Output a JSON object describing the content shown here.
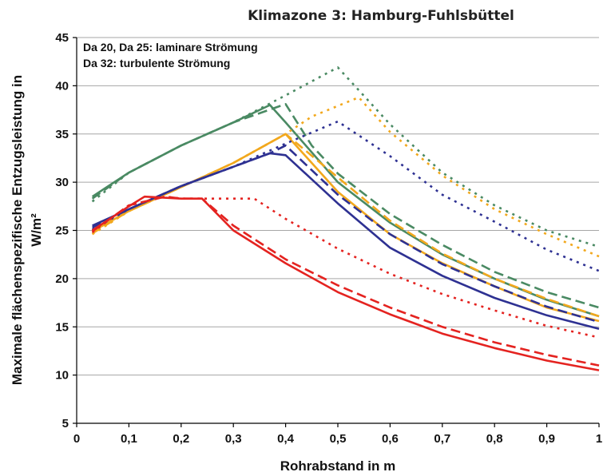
{
  "chart_data": {
    "type": "line",
    "title": "Klimazone 3: Hamburg-Fuhlsbüttel",
    "xlabel": "Rohrabstand in m",
    "ylabel_lines": [
      "Maximale flächenspezifische Entzugsleistung in",
      "W/m²"
    ],
    "annotations": [
      "Da 20, Da 25: laminare Strömung",
      "Da 32: turbulente Strömung"
    ],
    "xlim": [
      0,
      1
    ],
    "ylim": [
      5,
      45
    ],
    "x_ticks": [
      0,
      0.1,
      0.2,
      0.3,
      0.4,
      0.5,
      0.6,
      0.7,
      0.8,
      0.9,
      1
    ],
    "x_tick_labels": [
      "0",
      "0,1",
      "0,2",
      "0,3",
      "0,4",
      "0,5",
      "0,6",
      "0,7",
      "0,8",
      "0,9",
      "1"
    ],
    "y_ticks": [
      5,
      10,
      15,
      20,
      25,
      30,
      35,
      40,
      45
    ],
    "y_tick_labels": [
      "5",
      "10",
      "15",
      "20",
      "25",
      "30",
      "35",
      "40",
      "45"
    ],
    "grid": "horizontal",
    "series": [
      {
        "color": "#4a8a63",
        "dash": "dotted",
        "points": [
          [
            0.03,
            28.0
          ],
          [
            0.1,
            31.0
          ],
          [
            0.2,
            33.8
          ],
          [
            0.3,
            36.2
          ],
          [
            0.4,
            39.0
          ],
          [
            0.5,
            41.9
          ],
          [
            0.6,
            36.0
          ],
          [
            0.7,
            31.0
          ],
          [
            0.8,
            27.6
          ],
          [
            0.9,
            25.0
          ],
          [
            1.0,
            23.3
          ]
        ]
      },
      {
        "color": "#4a8a63",
        "dash": "dashed",
        "points": [
          [
            0.03,
            28.3
          ],
          [
            0.1,
            31.0
          ],
          [
            0.2,
            33.8
          ],
          [
            0.3,
            36.2
          ],
          [
            0.4,
            38.1
          ],
          [
            0.45,
            33.8
          ],
          [
            0.5,
            30.9
          ],
          [
            0.6,
            26.7
          ],
          [
            0.7,
            23.5
          ],
          [
            0.8,
            20.7
          ],
          [
            0.9,
            18.6
          ],
          [
            1.0,
            17.0
          ]
        ]
      },
      {
        "color": "#4a8a63",
        "dash": "solid",
        "points": [
          [
            0.03,
            28.5
          ],
          [
            0.1,
            31.0
          ],
          [
            0.2,
            33.8
          ],
          [
            0.3,
            36.2
          ],
          [
            0.37,
            38.0
          ],
          [
            0.4,
            36.2
          ],
          [
            0.5,
            30.0
          ],
          [
            0.6,
            25.8
          ],
          [
            0.7,
            22.5
          ],
          [
            0.8,
            20.0
          ],
          [
            0.9,
            17.8
          ],
          [
            1.0,
            16.1
          ]
        ]
      },
      {
        "color": "#f2a81d",
        "dash": "dotted",
        "points": [
          [
            0.03,
            24.6
          ],
          [
            0.1,
            27.0
          ],
          [
            0.2,
            29.5
          ],
          [
            0.3,
            32.0
          ],
          [
            0.4,
            35.0
          ],
          [
            0.45,
            36.8
          ],
          [
            0.54,
            38.8
          ],
          [
            0.6,
            35.2
          ],
          [
            0.7,
            30.7
          ],
          [
            0.8,
            27.2
          ],
          [
            0.9,
            24.6
          ],
          [
            1.0,
            22.3
          ]
        ]
      },
      {
        "color": "#f2a81d",
        "dash": "dashed",
        "points": [
          [
            0.03,
            24.7
          ],
          [
            0.1,
            27.0
          ],
          [
            0.2,
            29.5
          ],
          [
            0.3,
            32.0
          ],
          [
            0.4,
            35.0
          ],
          [
            0.5,
            30.5
          ],
          [
            0.6,
            26.0
          ],
          [
            0.7,
            22.6
          ],
          [
            0.8,
            20.0
          ],
          [
            0.9,
            17.9
          ],
          [
            1.0,
            16.1
          ]
        ]
      },
      {
        "color": "#f2a81d",
        "dash": "solid",
        "points": [
          [
            0.03,
            24.9
          ],
          [
            0.1,
            27.0
          ],
          [
            0.2,
            29.5
          ],
          [
            0.3,
            32.0
          ],
          [
            0.4,
            35.0
          ],
          [
            0.5,
            29.0
          ],
          [
            0.6,
            24.6
          ],
          [
            0.7,
            21.6
          ],
          [
            0.8,
            19.2
          ],
          [
            0.9,
            17.0
          ],
          [
            1.0,
            15.6
          ]
        ]
      },
      {
        "color": "#2e3192",
        "dash": "dotted",
        "points": [
          [
            0.03,
            25.1
          ],
          [
            0.1,
            27.2
          ],
          [
            0.2,
            29.6
          ],
          [
            0.3,
            31.6
          ],
          [
            0.4,
            34.0
          ],
          [
            0.5,
            36.3
          ],
          [
            0.6,
            32.7
          ],
          [
            0.7,
            28.7
          ],
          [
            0.8,
            25.9
          ],
          [
            0.9,
            23.0
          ],
          [
            1.0,
            20.8
          ]
        ]
      },
      {
        "color": "#2e3192",
        "dash": "dashed",
        "points": [
          [
            0.03,
            25.3
          ],
          [
            0.1,
            27.2
          ],
          [
            0.2,
            29.6
          ],
          [
            0.3,
            31.6
          ],
          [
            0.37,
            33.0
          ],
          [
            0.4,
            33.8
          ],
          [
            0.5,
            28.7
          ],
          [
            0.6,
            24.6
          ],
          [
            0.7,
            21.5
          ],
          [
            0.8,
            19.2
          ],
          [
            0.9,
            17.1
          ],
          [
            1.0,
            15.5
          ]
        ]
      },
      {
        "color": "#2e3192",
        "dash": "solid",
        "points": [
          [
            0.03,
            25.5
          ],
          [
            0.1,
            27.2
          ],
          [
            0.2,
            29.6
          ],
          [
            0.3,
            31.6
          ],
          [
            0.37,
            33.0
          ],
          [
            0.4,
            32.8
          ],
          [
            0.5,
            27.8
          ],
          [
            0.6,
            23.2
          ],
          [
            0.7,
            20.3
          ],
          [
            0.8,
            18.0
          ],
          [
            0.9,
            16.2
          ],
          [
            1.0,
            14.8
          ]
        ]
      },
      {
        "color": "#e42320",
        "dash": "dotted",
        "points": [
          [
            0.03,
            24.8
          ],
          [
            0.1,
            27.6
          ],
          [
            0.17,
            28.5
          ],
          [
            0.2,
            28.3
          ],
          [
            0.26,
            28.3
          ],
          [
            0.34,
            28.3
          ],
          [
            0.4,
            26.2
          ],
          [
            0.5,
            23.1
          ],
          [
            0.6,
            20.5
          ],
          [
            0.7,
            18.4
          ],
          [
            0.8,
            16.7
          ],
          [
            0.9,
            15.1
          ],
          [
            1.0,
            13.9
          ]
        ]
      },
      {
        "color": "#e42320",
        "dash": "dashed",
        "points": [
          [
            0.03,
            24.9
          ],
          [
            0.1,
            27.6
          ],
          [
            0.17,
            28.5
          ],
          [
            0.2,
            28.3
          ],
          [
            0.24,
            28.3
          ],
          [
            0.3,
            25.5
          ],
          [
            0.4,
            22.0
          ],
          [
            0.5,
            19.3
          ],
          [
            0.6,
            17.0
          ],
          [
            0.7,
            15.0
          ],
          [
            0.8,
            13.4
          ],
          [
            0.9,
            12.1
          ],
          [
            1.0,
            11.0
          ]
        ]
      },
      {
        "color": "#e42320",
        "dash": "solid",
        "points": [
          [
            0.03,
            25.0
          ],
          [
            0.1,
            27.5
          ],
          [
            0.13,
            28.5
          ],
          [
            0.2,
            28.3
          ],
          [
            0.24,
            28.3
          ],
          [
            0.3,
            25.0
          ],
          [
            0.4,
            21.6
          ],
          [
            0.5,
            18.6
          ],
          [
            0.6,
            16.3
          ],
          [
            0.7,
            14.3
          ],
          [
            0.8,
            12.8
          ],
          [
            0.9,
            11.5
          ],
          [
            1.0,
            10.5
          ]
        ]
      }
    ]
  }
}
